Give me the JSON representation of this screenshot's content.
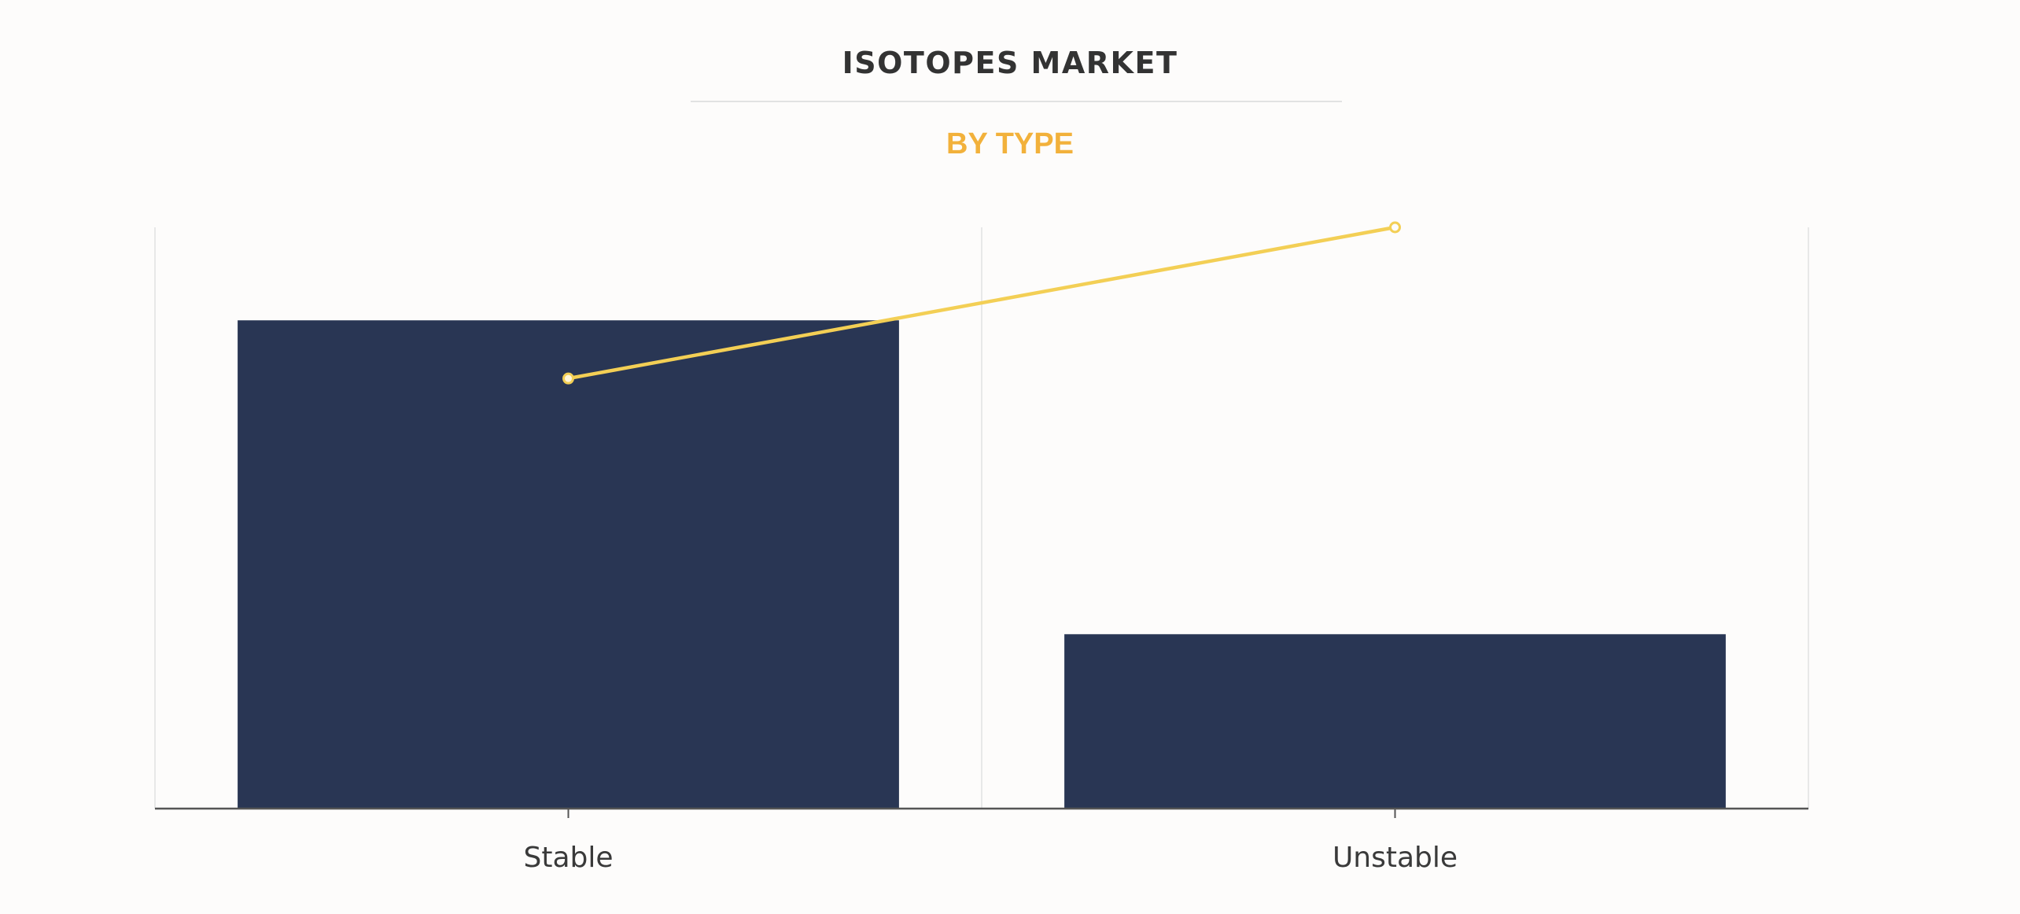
{
  "chart_data": {
    "type": "bar",
    "title": "ISOTOPES MARKET",
    "subtitle": "BY TYPE",
    "categories": [
      "Stable",
      "Unstable"
    ],
    "series": [
      {
        "kind": "bar",
        "values": [
          84,
          30
        ],
        "color": "#293654"
      },
      {
        "kind": "line",
        "values": [
          74,
          100
        ],
        "color": "#f3cf55"
      }
    ],
    "ylim": [
      0,
      100
    ],
    "grid": "vertical"
  }
}
